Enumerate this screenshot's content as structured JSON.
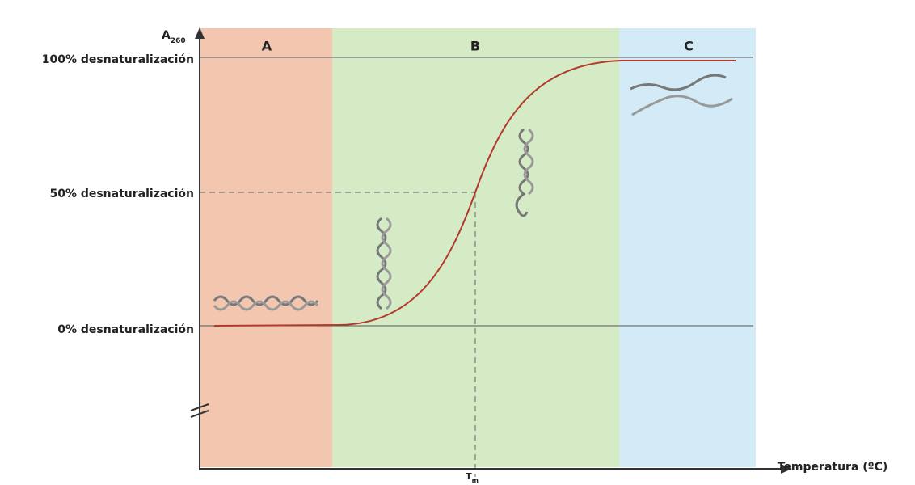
{
  "diagram": {
    "y_axis": {
      "main": "A",
      "sub": "260"
    },
    "x_axis": "Temperatura (ºC)",
    "levels": [
      "100% desnaturalización",
      "50% desnaturalización",
      "0% desnaturalización"
    ],
    "regions": [
      "A",
      "B",
      "C"
    ],
    "tm": {
      "main": "T",
      "sub": "m"
    }
  }
}
